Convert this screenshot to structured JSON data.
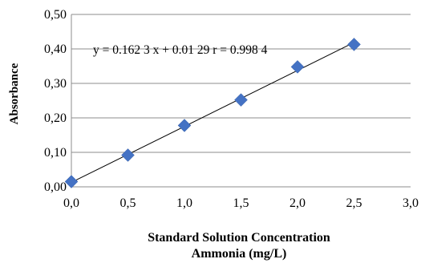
{
  "chart_data": {
    "type": "scatter",
    "ylabel": "Absorbance",
    "xlabel_lines": [
      "Standard Solution Concentration",
      "Ammonia (mg/L)"
    ],
    "xlim": [
      0,
      3
    ],
    "ylim": [
      0,
      0.5
    ],
    "x_ticks": [
      "0,0",
      "0,5",
      "1,0",
      "1,5",
      "2,0",
      "2,5",
      "3,0"
    ],
    "y_ticks": [
      "0,00",
      "0,10",
      "0,20",
      "0,30",
      "0,40",
      "0,50"
    ],
    "grid": "horizontal",
    "series": [
      {
        "marker": "diamond",
        "color": "#4472c4",
        "points": [
          {
            "x": 0.0,
            "y": 0.015
          },
          {
            "x": 0.5,
            "y": 0.092
          },
          {
            "x": 1.0,
            "y": 0.178
          },
          {
            "x": 1.5,
            "y": 0.252
          },
          {
            "x": 2.0,
            "y": 0.348
          },
          {
            "x": 2.5,
            "y": 0.413
          }
        ]
      }
    ],
    "trendline": {
      "slope": 0.1623,
      "intercept": 0.0129,
      "x_from": 0,
      "x_to": 2.5
    },
    "annotation": "y = 0.162 3 x + 0.01 29 r = 0.998 4"
  }
}
